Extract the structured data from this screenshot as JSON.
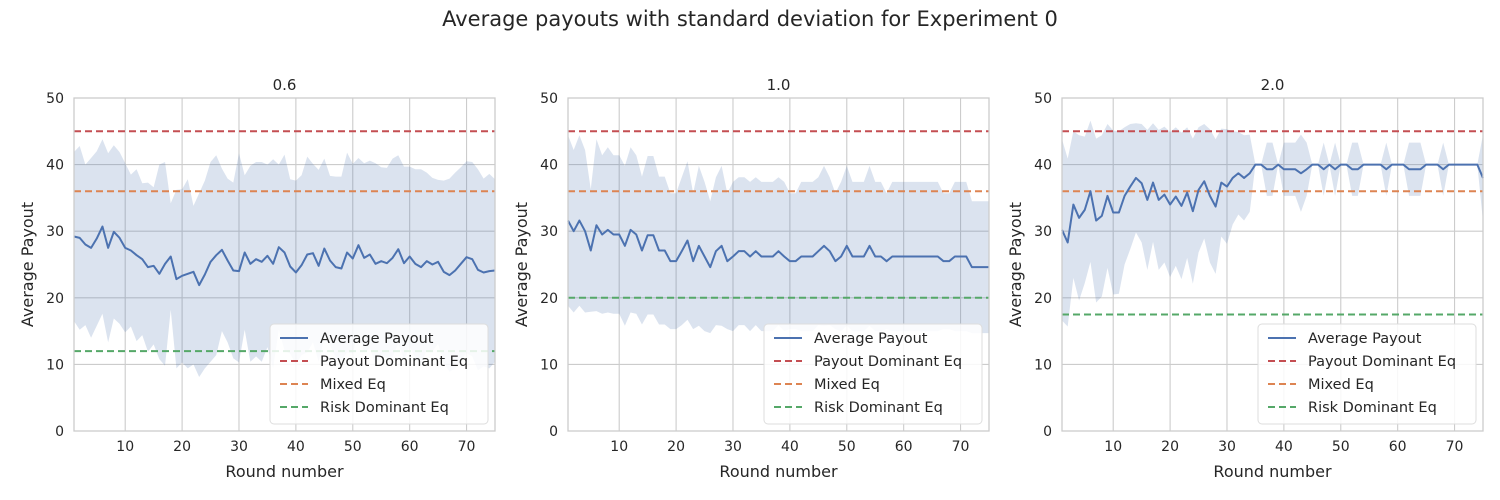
{
  "figure": {
    "title": "Average payouts with standard deviation for Experiment 0"
  },
  "colors": {
    "average": "#4c72b0",
    "band": "#4c72b0",
    "payout_dominant": "#c44e52",
    "mixed": "#dd8452",
    "risk_dominant": "#55a868",
    "grid": "#cccccc",
    "axes": "#cccccc"
  },
  "legend": {
    "placement": "lower right",
    "entries": [
      "Average Payout",
      "Payout Dominant Eq",
      "Mixed Eq",
      "Risk Dominant Eq"
    ]
  },
  "chart_data": [
    {
      "type": "line",
      "title": "0.6",
      "xlabel": "Round number",
      "ylabel": "Average Payout",
      "xlim": [
        1,
        75
      ],
      "ylim": [
        0,
        50
      ],
      "xticks": [
        10,
        20,
        30,
        40,
        50,
        60,
        70
      ],
      "yticks": [
        0,
        10,
        20,
        30,
        40,
        50
      ],
      "grid": true,
      "legend_placement": "lower right",
      "x": [
        1,
        2,
        3,
        4,
        5,
        6,
        7,
        8,
        9,
        10,
        11,
        12,
        13,
        14,
        15,
        16,
        17,
        18,
        19,
        20,
        21,
        22,
        23,
        24,
        25,
        26,
        27,
        28,
        29,
        30,
        31,
        32,
        33,
        34,
        35,
        36,
        37,
        38,
        39,
        40,
        41,
        42,
        43,
        44,
        45,
        46,
        47,
        48,
        49,
        50,
        51,
        52,
        53,
        54,
        55,
        56,
        57,
        58,
        59,
        60,
        61,
        62,
        63,
        64,
        65,
        66,
        67,
        68,
        69,
        70,
        71,
        72,
        73,
        74,
        75
      ],
      "series": [
        {
          "name": "Average Payout",
          "values": [
            29.2,
            29.0,
            28.0,
            27.5,
            28.9,
            30.7,
            27.5,
            29.9,
            29.0,
            27.5,
            27.1,
            26.4,
            25.8,
            24.6,
            24.8,
            23.6,
            25.1,
            26.2,
            22.8,
            23.3,
            23.6,
            23.9,
            21.9,
            23.5,
            25.4,
            26.4,
            27.2,
            25.6,
            24.1,
            24.0,
            26.8,
            25.1,
            25.8,
            25.4,
            26.3,
            25.1,
            27.6,
            26.8,
            24.7,
            23.8,
            24.9,
            26.5,
            26.7,
            24.8,
            27.4,
            25.6,
            24.6,
            24.4,
            26.8,
            25.9,
            27.9,
            26.0,
            26.5,
            25.1,
            25.5,
            25.2,
            26.0,
            27.3,
            25.2,
            26.2,
            25.1,
            24.6,
            25.5,
            25.0,
            25.4,
            23.9,
            23.4,
            24.1,
            25.1,
            26.1,
            25.8,
            24.2,
            23.8,
            24.0,
            24.1
          ]
        },
        {
          "name": "band_upper",
          "values": [
            41.9,
            42.8,
            40.0,
            41.0,
            42.0,
            43.8,
            41.7,
            42.9,
            41.9,
            40.2,
            38.5,
            39.3,
            37.2,
            37.3,
            36.6,
            40.0,
            40.4,
            34.2,
            36.2,
            36.3,
            37.8,
            33.8,
            35.7,
            37.6,
            40.4,
            41.4,
            39.4,
            37.9,
            37.3,
            41.7,
            38.4,
            39.8,
            40.4,
            40.4,
            40.0,
            40.8,
            40.0,
            41.5,
            37.8,
            37.6,
            38.4,
            41.2,
            40.1,
            39.2,
            40.9,
            38.3,
            38.2,
            38.2,
            41.8,
            40.1,
            41.0,
            40.2,
            40.6,
            40.2,
            39.6,
            39.5,
            40.9,
            41.4,
            39.7,
            39.7,
            39.3,
            39.3,
            38.8,
            38.0,
            37.7,
            37.6,
            37.9,
            38.8,
            39.6,
            40.5,
            40.4,
            39.3,
            37.9,
            38.6,
            37.8
          ]
        },
        {
          "name": "band_lower",
          "values": [
            16.5,
            15.2,
            15.9,
            14.0,
            15.8,
            17.6,
            13.3,
            16.9,
            16.1,
            14.8,
            15.7,
            13.5,
            14.4,
            11.9,
            13.0,
            10.8,
            9.8,
            18.2,
            9.4,
            10.3,
            9.4,
            10.0,
            8.1,
            9.4,
            10.4,
            11.4,
            15.0,
            13.3,
            10.9,
            10.3,
            15.2,
            10.4,
            11.2,
            10.4,
            12.6,
            9.4,
            15.2,
            12.1,
            11.6,
            10.0,
            11.4,
            11.8,
            13.3,
            10.4,
            13.9,
            12.9,
            11.0,
            10.6,
            11.8,
            11.7,
            14.8,
            11.8,
            12.4,
            10.0,
            11.4,
            10.9,
            11.1,
            13.2,
            10.7,
            12.7,
            10.9,
            9.9,
            12.2,
            12.0,
            13.1,
            10.2,
            8.9,
            9.4,
            10.6,
            11.7,
            11.2,
            9.1,
            9.7,
            9.4,
            10.4
          ]
        },
        {
          "name": "Payout Dominant Eq",
          "constant": 45
        },
        {
          "name": "Mixed Eq",
          "constant": 36
        },
        {
          "name": "Risk Dominant Eq",
          "constant": 12
        }
      ]
    },
    {
      "type": "line",
      "title": "1.0",
      "xlabel": "Round number",
      "ylabel": "Average Payout",
      "xlim": [
        1,
        75
      ],
      "ylim": [
        0,
        50
      ],
      "xticks": [
        10,
        20,
        30,
        40,
        50,
        60,
        70
      ],
      "yticks": [
        0,
        10,
        20,
        30,
        40,
        50
      ],
      "grid": true,
      "legend_placement": "lower right",
      "x": [
        1,
        2,
        3,
        4,
        5,
        6,
        7,
        8,
        9,
        10,
        11,
        12,
        13,
        14,
        15,
        16,
        17,
        18,
        19,
        20,
        21,
        22,
        23,
        24,
        25,
        26,
        27,
        28,
        29,
        30,
        31,
        32,
        33,
        34,
        35,
        36,
        37,
        38,
        39,
        40,
        41,
        42,
        43,
        44,
        45,
        46,
        47,
        48,
        49,
        50,
        51,
        52,
        53,
        54,
        55,
        56,
        57,
        58,
        59,
        60,
        61,
        62,
        63,
        64,
        65,
        66,
        67,
        68,
        69,
        70,
        71,
        72,
        73,
        74,
        75
      ],
      "series": [
        {
          "name": "Average Payout",
          "values": [
            31.6,
            30.0,
            31.6,
            30.0,
            27.1,
            30.9,
            29.5,
            30.2,
            29.5,
            29.5,
            27.8,
            30.2,
            29.5,
            27.1,
            29.4,
            29.4,
            27.1,
            27.1,
            25.5,
            25.5,
            27.0,
            28.6,
            25.5,
            27.8,
            26.2,
            24.6,
            27.0,
            27.8,
            25.5,
            26.2,
            27.0,
            27.0,
            26.2,
            27.0,
            26.2,
            26.2,
            26.2,
            27.0,
            26.2,
            25.5,
            25.5,
            26.2,
            26.2,
            26.2,
            27.0,
            27.8,
            27.0,
            25.5,
            26.2,
            27.8,
            26.2,
            26.2,
            26.2,
            27.8,
            26.2,
            26.2,
            25.5,
            26.2,
            26.2,
            26.2,
            26.2,
            26.2,
            26.2,
            26.2,
            26.2,
            26.2,
            25.5,
            25.5,
            26.2,
            26.2,
            26.2,
            24.6,
            24.6,
            24.6,
            24.6
          ]
        },
        {
          "name": "band_upper",
          "values": [
            44.4,
            42.2,
            44.4,
            42.2,
            36.3,
            43.8,
            41.4,
            42.6,
            41.4,
            41.4,
            39.8,
            42.6,
            41.4,
            38.2,
            41.3,
            41.3,
            38.2,
            38.2,
            35.7,
            35.7,
            38.1,
            40.5,
            35.7,
            39.8,
            37.4,
            34.5,
            38.1,
            39.8,
            35.7,
            37.4,
            38.1,
            38.1,
            37.4,
            38.1,
            37.4,
            37.4,
            37.4,
            38.1,
            37.4,
            35.7,
            35.7,
            37.4,
            37.4,
            37.4,
            38.1,
            39.8,
            38.1,
            35.7,
            37.4,
            39.8,
            37.4,
            37.4,
            37.4,
            39.8,
            37.4,
            37.4,
            35.7,
            37.4,
            37.4,
            37.4,
            37.4,
            37.4,
            37.4,
            37.4,
            37.4,
            37.4,
            35.7,
            35.7,
            37.4,
            37.4,
            37.4,
            34.5,
            34.5,
            34.5,
            34.5
          ]
        },
        {
          "name": "band_lower",
          "values": [
            18.8,
            17.8,
            18.8,
            17.8,
            17.9,
            18.0,
            17.6,
            17.8,
            17.6,
            17.6,
            15.8,
            17.8,
            17.6,
            16.0,
            17.5,
            17.5,
            16.0,
            16.0,
            15.3,
            15.3,
            15.9,
            16.7,
            15.3,
            15.8,
            15.0,
            14.7,
            15.9,
            15.8,
            15.3,
            15.0,
            15.9,
            15.9,
            15.0,
            15.9,
            15.0,
            15.0,
            15.0,
            15.9,
            15.0,
            15.3,
            15.3,
            15.0,
            15.0,
            15.0,
            15.9,
            15.8,
            15.9,
            15.3,
            15.0,
            15.8,
            15.0,
            15.0,
            15.0,
            15.8,
            15.0,
            15.0,
            15.3,
            15.0,
            15.0,
            15.0,
            15.0,
            15.0,
            15.0,
            15.0,
            15.0,
            15.0,
            15.3,
            15.3,
            15.0,
            15.0,
            15.0,
            14.7,
            14.7,
            14.7,
            14.7
          ]
        },
        {
          "name": "Payout Dominant Eq",
          "constant": 45
        },
        {
          "name": "Mixed Eq",
          "constant": 36
        },
        {
          "name": "Risk Dominant Eq",
          "constant": 20
        }
      ]
    },
    {
      "type": "line",
      "title": "2.0",
      "xlabel": "Round number",
      "ylabel": "Average Payout",
      "xlim": [
        1,
        75
      ],
      "ylim": [
        0,
        50
      ],
      "xticks": [
        10,
        20,
        30,
        40,
        50,
        60,
        70
      ],
      "yticks": [
        0,
        10,
        20,
        30,
        40,
        50
      ],
      "grid": true,
      "legend_placement": "lower right",
      "x": [
        1,
        2,
        3,
        4,
        5,
        6,
        7,
        8,
        9,
        10,
        11,
        12,
        13,
        14,
        15,
        16,
        17,
        18,
        19,
        20,
        21,
        22,
        23,
        24,
        25,
        26,
        27,
        28,
        29,
        30,
        31,
        32,
        33,
        34,
        35,
        36,
        37,
        38,
        39,
        40,
        41,
        42,
        43,
        44,
        45,
        46,
        47,
        48,
        49,
        50,
        51,
        52,
        53,
        54,
        55,
        56,
        57,
        58,
        59,
        60,
        61,
        62,
        63,
        64,
        65,
        66,
        67,
        68,
        69,
        70,
        71,
        72,
        73,
        74,
        75
      ],
      "series": [
        {
          "name": "Average Payout",
          "values": [
            30.2,
            28.3,
            34.0,
            32.0,
            33.2,
            36.0,
            31.6,
            32.3,
            35.3,
            32.8,
            32.8,
            35.3,
            36.7,
            38.0,
            37.2,
            34.7,
            37.3,
            34.7,
            35.5,
            34.0,
            35.2,
            33.8,
            35.8,
            33.0,
            36.2,
            37.5,
            35.3,
            33.7,
            37.3,
            36.7,
            38.0,
            38.7,
            38.0,
            38.7,
            40.0,
            40.0,
            39.3,
            39.3,
            40.0,
            39.3,
            39.3,
            39.3,
            38.7,
            39.3,
            40.0,
            40.0,
            39.3,
            40.0,
            39.3,
            40.0,
            40.0,
            39.3,
            39.3,
            40.0,
            40.0,
            40.0,
            40.0,
            39.3,
            40.0,
            40.0,
            40.0,
            39.3,
            39.3,
            39.3,
            40.0,
            40.0,
            40.0,
            39.3,
            40.0,
            40.0,
            40.0,
            40.0,
            40.0,
            40.0,
            38.0
          ]
        },
        {
          "name": "band_upper",
          "values": [
            43.8,
            40.9,
            45.0,
            44.4,
            44.2,
            46.6,
            43.9,
            44.4,
            46.1,
            45.1,
            45.0,
            45.6,
            46.1,
            46.2,
            46.1,
            45.2,
            46.2,
            45.2,
            45.7,
            44.9,
            45.6,
            44.8,
            45.6,
            43.9,
            45.6,
            46.1,
            45.3,
            43.8,
            45.4,
            45.3,
            45.0,
            44.9,
            44.4,
            44.5,
            40.0,
            40.0,
            43.3,
            43.3,
            40.0,
            43.3,
            43.3,
            43.3,
            44.5,
            43.3,
            40.0,
            40.0,
            43.3,
            40.0,
            43.3,
            40.0,
            40.0,
            43.3,
            43.3,
            40.0,
            40.0,
            40.0,
            40.0,
            43.3,
            40.0,
            40.0,
            40.0,
            43.3,
            43.3,
            43.3,
            40.0,
            40.0,
            40.0,
            43.3,
            40.0,
            40.0,
            40.0,
            40.0,
            40.0,
            40.0,
            44.5
          ]
        },
        {
          "name": "band_lower",
          "values": [
            16.6,
            15.7,
            23.0,
            19.6,
            22.2,
            25.4,
            19.3,
            20.2,
            24.5,
            20.5,
            20.6,
            25.0,
            27.3,
            29.8,
            28.3,
            24.2,
            28.4,
            24.2,
            25.3,
            23.1,
            24.8,
            22.8,
            26.0,
            22.1,
            26.8,
            28.9,
            25.3,
            23.6,
            29.2,
            28.1,
            31.0,
            32.5,
            31.6,
            32.9,
            40.0,
            40.0,
            35.3,
            35.3,
            40.0,
            35.3,
            35.3,
            35.3,
            32.9,
            35.3,
            40.0,
            40.0,
            35.3,
            40.0,
            35.3,
            40.0,
            40.0,
            35.3,
            35.3,
            40.0,
            40.0,
            40.0,
            40.0,
            35.3,
            40.0,
            40.0,
            40.0,
            35.3,
            35.3,
            35.3,
            40.0,
            40.0,
            40.0,
            35.3,
            40.0,
            40.0,
            40.0,
            40.0,
            40.0,
            40.0,
            31.5
          ]
        },
        {
          "name": "Payout Dominant Eq",
          "constant": 45
        },
        {
          "name": "Mixed Eq",
          "constant": 36
        },
        {
          "name": "Risk Dominant Eq",
          "constant": 17.5
        }
      ]
    }
  ]
}
